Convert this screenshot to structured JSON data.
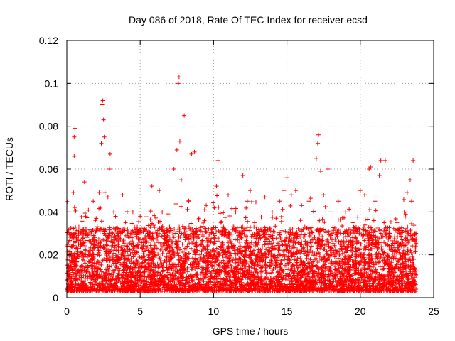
{
  "chart_data": {
    "type": "scatter",
    "title": "Day 086 of 2018, Rate Of TEC Index for receiver ecsd",
    "xlabel": "GPS time / hours",
    "ylabel": "ROTI / TECUs",
    "xlim": [
      0,
      25
    ],
    "ylim": [
      0,
      0.12
    ],
    "grid": true,
    "marker": "+",
    "color": "#ff0000",
    "x_ticks": [
      0,
      5,
      10,
      15,
      20,
      25
    ],
    "x_tick_labels": [
      "0",
      "5",
      "10",
      "15",
      "20",
      "25"
    ],
    "y_ticks": [
      0,
      0.02,
      0.04,
      0.06,
      0.08,
      0.1,
      0.12
    ],
    "y_tick_labels": [
      "0",
      "0.02",
      "0.04",
      "0.06",
      "0.08",
      "0.1",
      "0.12"
    ],
    "series": [
      {
        "name": "ROTI",
        "note": "dense band of points from 0 to ~23.8 h, typically 0.005-0.03 TECU/min; representative points listed",
        "points": [
          [
            0.1,
            0.012
          ],
          [
            0.3,
            0.02
          ],
          [
            0.45,
            0.049
          ],
          [
            0.5,
            0.066
          ],
          [
            0.5,
            0.075
          ],
          [
            0.55,
            0.079
          ],
          [
            0.6,
            0.03
          ],
          [
            0.8,
            0.025
          ],
          [
            1.0,
            0.015
          ],
          [
            1.2,
            0.054
          ],
          [
            1.5,
            0.02
          ],
          [
            1.8,
            0.045
          ],
          [
            2.0,
            0.037
          ],
          [
            2.2,
            0.049
          ],
          [
            2.35,
            0.072
          ],
          [
            2.4,
            0.09
          ],
          [
            2.45,
            0.092
          ],
          [
            2.5,
            0.083
          ],
          [
            2.55,
            0.075
          ],
          [
            2.6,
            0.049
          ],
          [
            2.8,
            0.047
          ],
          [
            2.9,
            0.06
          ],
          [
            2.95,
            0.067
          ],
          [
            3.2,
            0.04
          ],
          [
            3.5,
            0.03
          ],
          [
            3.8,
            0.048
          ],
          [
            4.0,
            0.035
          ],
          [
            4.5,
            0.04
          ],
          [
            4.8,
            0.033
          ],
          [
            5.0,
            0.038
          ],
          [
            5.5,
            0.03
          ],
          [
            5.8,
            0.052
          ],
          [
            6.0,
            0.025
          ],
          [
            6.3,
            0.05
          ],
          [
            6.5,
            0.04
          ],
          [
            7.0,
            0.033
          ],
          [
            7.3,
            0.06
          ],
          [
            7.5,
            0.069
          ],
          [
            7.6,
            0.1
          ],
          [
            7.65,
            0.103
          ],
          [
            7.7,
            0.073
          ],
          [
            7.8,
            0.055
          ],
          [
            8.0,
            0.085
          ],
          [
            8.3,
            0.045
          ],
          [
            8.5,
            0.067
          ],
          [
            8.7,
            0.068
          ],
          [
            9.0,
            0.037
          ],
          [
            9.5,
            0.043
          ],
          [
            10.0,
            0.03
          ],
          [
            10.2,
            0.052
          ],
          [
            10.3,
            0.064
          ],
          [
            10.5,
            0.035
          ],
          [
            11.0,
            0.048
          ],
          [
            11.5,
            0.04
          ],
          [
            12.0,
            0.057
          ],
          [
            12.3,
            0.045
          ],
          [
            12.5,
            0.05
          ],
          [
            12.8,
            0.035
          ],
          [
            13.0,
            0.03
          ],
          [
            13.5,
            0.047
          ],
          [
            14.0,
            0.04
          ],
          [
            14.5,
            0.045
          ],
          [
            14.8,
            0.05
          ],
          [
            15.0,
            0.056
          ],
          [
            15.3,
            0.048
          ],
          [
            15.6,
            0.05
          ],
          [
            16.0,
            0.043
          ],
          [
            16.5,
            0.045
          ],
          [
            17.0,
            0.065
          ],
          [
            17.1,
            0.072
          ],
          [
            17.15,
            0.076
          ],
          [
            17.3,
            0.059
          ],
          [
            17.5,
            0.048
          ],
          [
            17.8,
            0.06
          ],
          [
            18.0,
            0.04
          ],
          [
            18.5,
            0.045
          ],
          [
            19.0,
            0.04
          ],
          [
            19.5,
            0.035
          ],
          [
            20.0,
            0.05
          ],
          [
            20.3,
            0.048
          ],
          [
            20.6,
            0.06
          ],
          [
            20.7,
            0.061
          ],
          [
            21.0,
            0.045
          ],
          [
            21.3,
            0.057
          ],
          [
            21.4,
            0.064
          ],
          [
            21.7,
            0.064
          ],
          [
            22.0,
            0.03
          ],
          [
            22.5,
            0.035
          ],
          [
            23.0,
            0.04
          ],
          [
            23.2,
            0.049
          ],
          [
            23.4,
            0.055
          ],
          [
            23.5,
            0.045
          ],
          [
            23.6,
            0.064
          ],
          [
            23.8,
            0.03
          ]
        ]
      }
    ]
  }
}
